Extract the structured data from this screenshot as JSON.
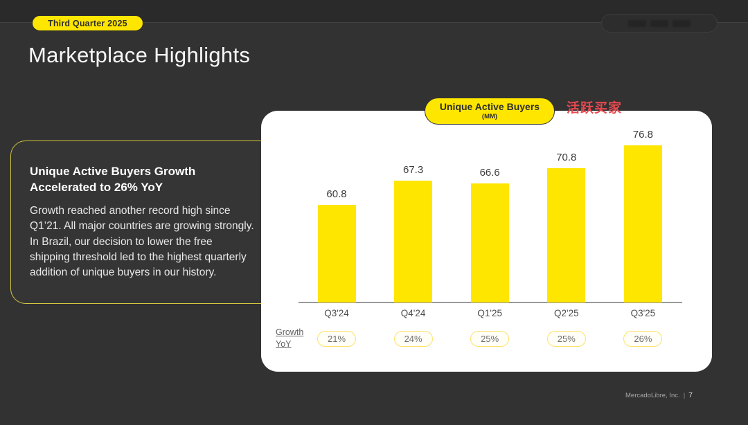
{
  "header": {
    "quarter_badge": "Third Quarter 2025",
    "title": "Marketplace Highlights"
  },
  "left_panel": {
    "heading_line1": "Unique Active Buyers Growth",
    "heading_line2": "Accelerated to 26% YoY",
    "body": "Growth reached another record high since Q1’21. All major countries are growing strongly. In Brazil, our decision to lower the free shipping threshold led to the highest quarterly addition of unique buyers in our history."
  },
  "annotation": {
    "text": "活跃买家"
  },
  "chart_data": {
    "type": "bar",
    "title": "Unique Active Buyers",
    "unit_label": "(MM)",
    "categories": [
      "Q3'24",
      "Q4'24",
      "Q1'25",
      "Q2'25",
      "Q3'25"
    ],
    "values": [
      60.8,
      67.3,
      66.6,
      70.8,
      76.8
    ],
    "growth_row": {
      "label_line1": "Growth",
      "label_line2": "YoY",
      "values": [
        "21%",
        "24%",
        "25%",
        "25%",
        "26%"
      ]
    },
    "ylim": [
      34.7,
      80
    ],
    "grid": false,
    "legend": false,
    "bar_color": "#FFE600"
  },
  "footer": {
    "company": "MercadoLibre, Inc.",
    "separator": "|",
    "page": "7"
  },
  "colors": {
    "accent_yellow": "#FFE600",
    "background": "#323232",
    "top_strip": "#2a2a2a",
    "card": "#ffffff",
    "annotation_red": "#E8484F"
  }
}
